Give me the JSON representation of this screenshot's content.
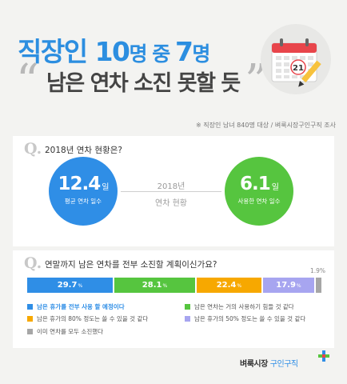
{
  "header": {
    "title1_a": "직장인 ",
    "title1_num1": "10",
    "title1_unit1": "명 중 ",
    "title1_num2": "7",
    "title1_unit2": "명",
    "title2": "남은 연차 소진 못할 듯",
    "quote_open": "“",
    "quote_close": "”"
  },
  "illustration": {
    "icon": "calendar-icon",
    "pencil_icon": "pencil-icon",
    "calendar_day": "21",
    "calendar_header_color": "#e8454b"
  },
  "source_note": "※ 직장인 남녀 840명 대상 / 벼룩시장구인구직 조사",
  "section1": {
    "q_mark": "Q.",
    "question": "2018년 연차 현황은?",
    "center_label_1": "2018년",
    "center_label_2": "연차 현황"
  },
  "section2": {
    "q_mark": "Q.",
    "question": "연말까지 남은 연차를 전부 소진할 계획이신가요?"
  },
  "colors": {
    "blue": "#2f8ee6",
    "green": "#56c53f",
    "orange": "#f7a800",
    "purple": "#a7a5f0",
    "gray": "#a6a6a6"
  },
  "chart_data": [
    {
      "type": "bar",
      "categories": [
        "평균 연차 일수",
        "사용한 연차 일수"
      ],
      "values": [
        12.4,
        6.1
      ],
      "unit": "일",
      "title": "2018년 연차 현황"
    },
    {
      "type": "bar",
      "stacked": true,
      "unit": "%",
      "series": [
        {
          "name": "남은 휴가를 전부 사용 할 예정이다",
          "values": [
            29.7
          ],
          "color": "#2f8ee6"
        },
        {
          "name": "남은 연차는 거의 사용하기 힘들 것 같다",
          "values": [
            28.1
          ],
          "color": "#56c53f"
        },
        {
          "name": "남은 휴가의 80% 정도는 쓸 수 있을 것 같다",
          "values": [
            22.4
          ],
          "color": "#f7a800"
        },
        {
          "name": "남은 휴가의 50% 정도는 쓸 수 있을 것 같다",
          "values": [
            17.9
          ],
          "color": "#a7a5f0"
        },
        {
          "name": "이미 연차를 모두 소진했다",
          "values": [
            1.9
          ],
          "color": "#a6a6a6"
        }
      ],
      "title": "연말까지 남은 연차를 전부 소진할 계획이신가요?"
    }
  ],
  "logo": {
    "part1": "벼룩시장",
    "part2": "구인구직",
    "icon": "plus-logo-icon"
  }
}
